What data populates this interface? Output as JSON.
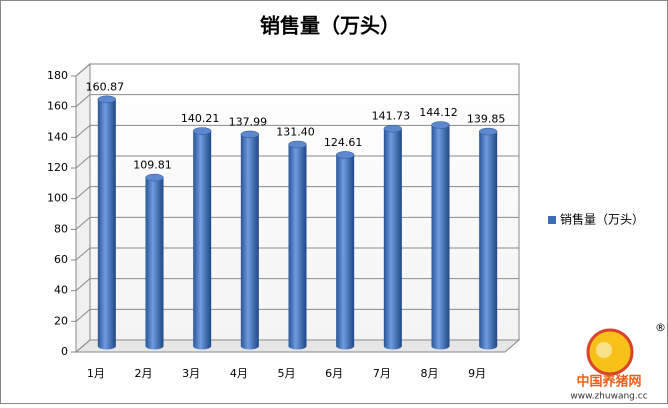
{
  "chart_data": {
    "type": "bar3d",
    "title": "销售量（万头）",
    "categories": [
      "1月",
      "2月",
      "3月",
      "4月",
      "5月",
      "6月",
      "7月",
      "8月",
      "9月"
    ],
    "series": [
      {
        "name": "销售量（万头）",
        "color": "#3d6fb5",
        "values": [
          160.87,
          109.81,
          140.21,
          137.99,
          131.4,
          124.61,
          141.73,
          144.12,
          139.85
        ],
        "value_labels": [
          "160.87",
          "109.81",
          "140.21",
          "137.99",
          "131.40",
          "124.61",
          "141.73",
          "144.12",
          "139.85"
        ]
      }
    ],
    "ylim": [
      0,
      180
    ],
    "yticks": [
      0,
      20,
      40,
      60,
      80,
      100,
      120,
      140,
      160,
      180
    ],
    "grid": true,
    "legend": "right"
  },
  "watermark": {
    "name": "中国养猪网",
    "url": "www.zhuwang.cc"
  }
}
